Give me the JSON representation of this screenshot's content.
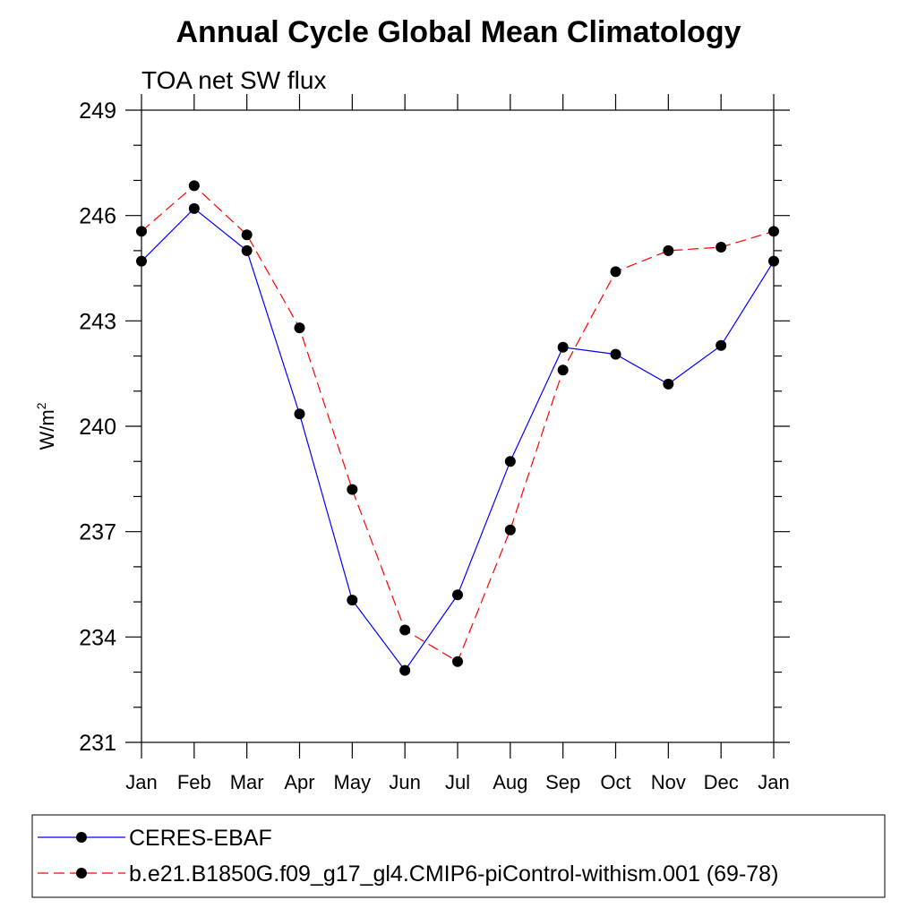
{
  "chart_data": {
    "type": "line",
    "title": "Annual Cycle Global Mean Climatology",
    "subtitle": "TOA net SW flux",
    "ylabel": "W/m",
    "ylabel_sup": "2",
    "xlabel": "",
    "categories": [
      "Jan",
      "Feb",
      "Mar",
      "Apr",
      "May",
      "Jun",
      "Jul",
      "Aug",
      "Sep",
      "Oct",
      "Nov",
      "Dec",
      "Jan"
    ],
    "ylim": [
      231,
      249
    ],
    "yticks": [
      "231",
      "234",
      "237",
      "240",
      "243",
      "246",
      "249"
    ],
    "grid": false,
    "legend_position": "bottom",
    "series": [
      {
        "name": "CERES-EBAF",
        "color": "#0000ff",
        "line_style": "solid",
        "values": [
          244.7,
          246.2,
          245.0,
          240.35,
          235.05,
          233.05,
          235.2,
          239.0,
          242.25,
          242.05,
          241.2,
          242.3,
          244.7
        ]
      },
      {
        "name": "b.e21.B1850G.f09_g17_gl4.CMIP6-piControl-withism.001 (69-78)",
        "color": "#ff0000",
        "line_style": "dashed",
        "values": [
          245.55,
          246.85,
          245.45,
          242.8,
          238.2,
          234.2,
          233.3,
          237.05,
          241.6,
          244.4,
          245.0,
          245.1,
          245.55
        ]
      }
    ]
  }
}
